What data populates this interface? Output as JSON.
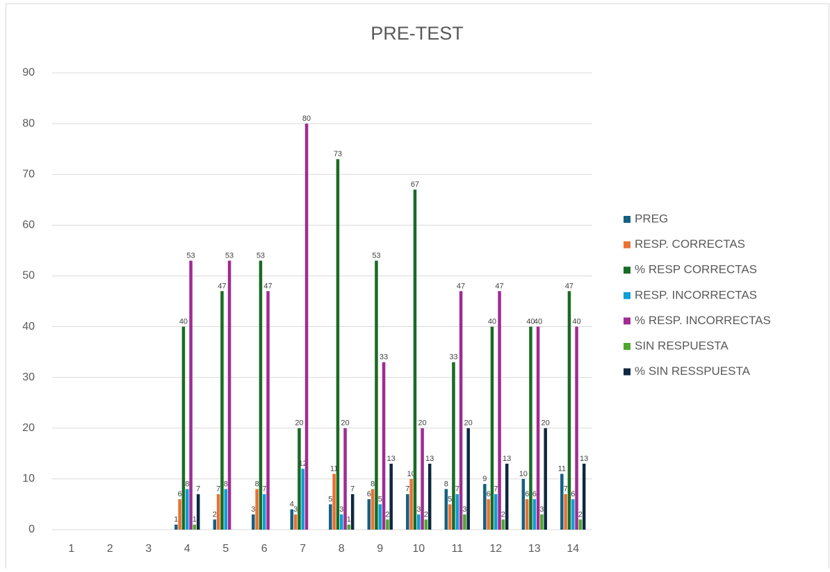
{
  "chart_data": {
    "type": "bar",
    "title": "PRE-TEST",
    "categories": [
      "1",
      "2",
      "3",
      "4",
      "5",
      "6",
      "7",
      "8",
      "9",
      "10",
      "11",
      "12",
      "13",
      "14"
    ],
    "series": [
      {
        "name": "PREG",
        "color": "#156082",
        "values": [
          null,
          null,
          null,
          1,
          2,
          3,
          4,
          5,
          6,
          7,
          8,
          9,
          10,
          11
        ]
      },
      {
        "name": "RESP. CORRECTAS",
        "color": "#e97132",
        "values": [
          null,
          null,
          null,
          6,
          7,
          8,
          3,
          11,
          8,
          10,
          5,
          6,
          6,
          7
        ]
      },
      {
        "name": "% RESP CORRECTAS",
        "color": "#196b24",
        "values": [
          null,
          null,
          null,
          40,
          47,
          53,
          20,
          73,
          53,
          67,
          33,
          40,
          40,
          47
        ]
      },
      {
        "name": "RESP. INCORRECTAS",
        "color": "#0f9ed5",
        "values": [
          null,
          null,
          null,
          8,
          8,
          7,
          12,
          3,
          5,
          3,
          7,
          7,
          6,
          6
        ]
      },
      {
        "name": "% RESP. INCORRECTAS",
        "color": "#a02b93",
        "values": [
          null,
          null,
          null,
          53,
          53,
          47,
          80,
          20,
          33,
          20,
          47,
          47,
          40,
          40
        ]
      },
      {
        "name": "SIN RESPUESTA",
        "color": "#4ea72e",
        "values": [
          null,
          null,
          null,
          1,
          null,
          null,
          null,
          1,
          2,
          2,
          3,
          2,
          3,
          2
        ]
      },
      {
        "name": "% SIN RESSPUESTA",
        "color": "#0e2841",
        "values": [
          null,
          null,
          null,
          7,
          null,
          null,
          null,
          7,
          13,
          13,
          20,
          13,
          20,
          13
        ]
      }
    ],
    "ylim": [
      0,
      90
    ],
    "yticks": [
      0,
      10,
      20,
      30,
      40,
      50,
      60,
      70,
      80,
      90
    ],
    "grid": true,
    "legend": "right"
  }
}
